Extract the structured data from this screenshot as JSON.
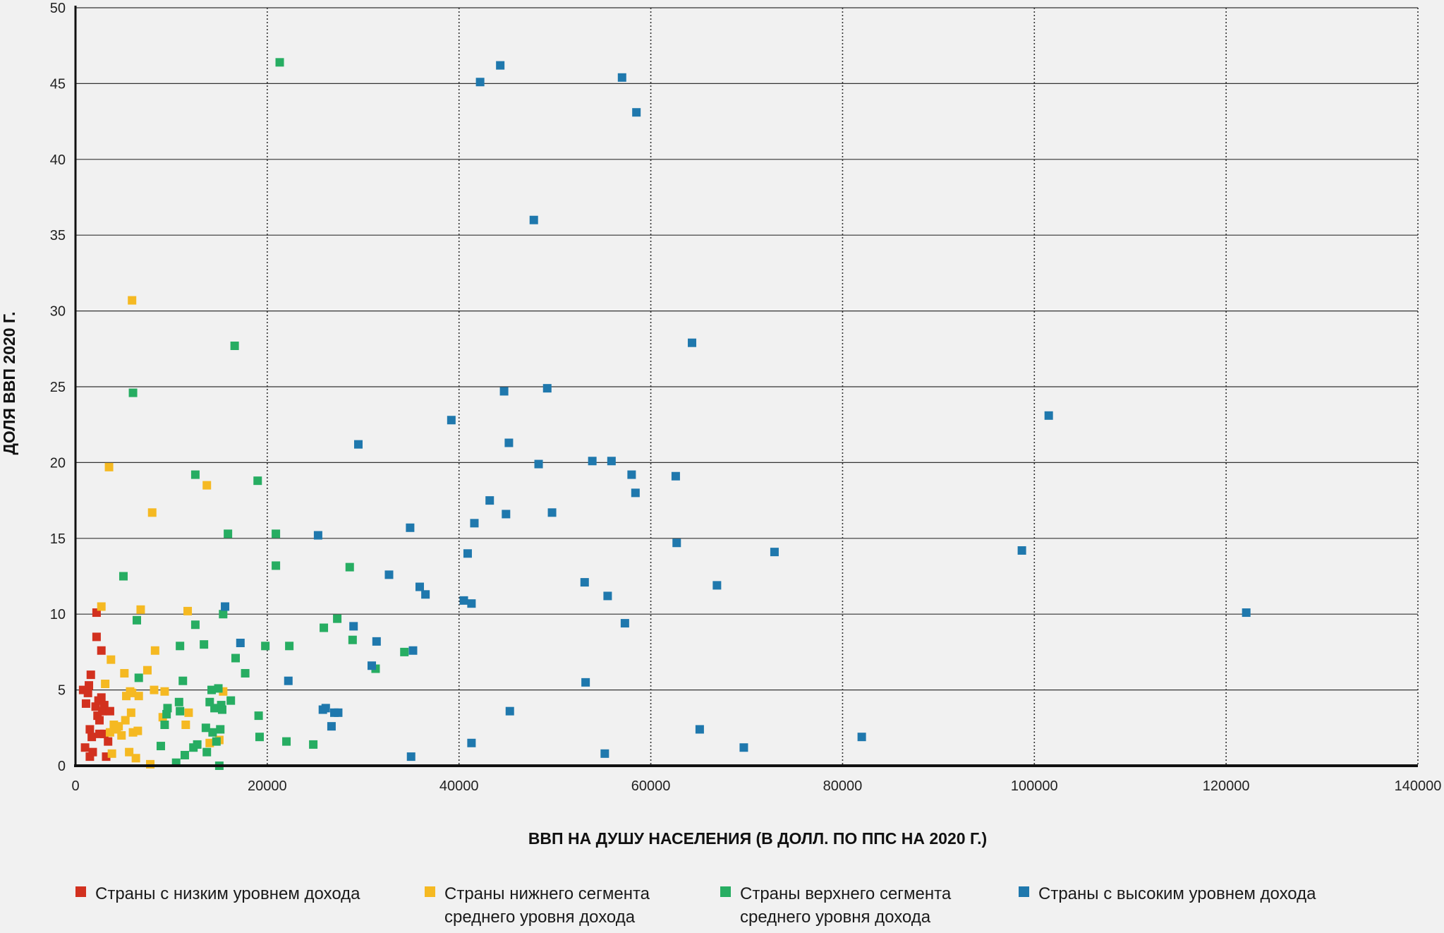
{
  "chart_data": {
    "type": "scatter",
    "title": "",
    "xlabel": "ВВП НА ДУШУ НАСЕЛЕНИЯ (В ДОЛЛ. ПО ППС НА 2020 Г.)",
    "ylabel": "ДОЛЯ ВВП 2020 Г.",
    "xlim": [
      0,
      140000
    ],
    "ylim": [
      0,
      50
    ],
    "x_ticks": [
      "0",
      "20000",
      "40000",
      "60000",
      "80000",
      "100000",
      "120000",
      "140000"
    ],
    "y_ticks": [
      "0",
      "5",
      "10",
      "15",
      "20",
      "25",
      "30",
      "35",
      "40",
      "45",
      "50"
    ],
    "grid": {
      "x": "dotted vertical",
      "y": "solid horizontal"
    },
    "legend_position": "bottom",
    "series": [
      {
        "name": "Страны с низким уровнем дохода",
        "color": "#d2311f",
        "points": [
          [
            800,
            5.0
          ],
          [
            1000,
            1.2
          ],
          [
            1100,
            4.1
          ],
          [
            1300,
            4.8
          ],
          [
            1400,
            5.3
          ],
          [
            1500,
            0.6
          ],
          [
            1500,
            2.4
          ],
          [
            1600,
            6.0
          ],
          [
            1700,
            1.9
          ],
          [
            1800,
            0.9
          ],
          [
            2100,
            3.9
          ],
          [
            2200,
            10.1
          ],
          [
            2200,
            8.5
          ],
          [
            2300,
            3.3
          ],
          [
            2400,
            4.3
          ],
          [
            2500,
            3.0
          ],
          [
            2500,
            2.1
          ],
          [
            2700,
            4.5
          ],
          [
            2700,
            7.6
          ],
          [
            2800,
            3.6
          ],
          [
            3000,
            4.0
          ],
          [
            3000,
            2.1
          ],
          [
            3200,
            0.6
          ],
          [
            3400,
            1.6
          ],
          [
            3600,
            3.6
          ]
        ]
      },
      {
        "name": "Страны нижнего сегмента\nсреднего уровня дохода",
        "color": "#f5b922",
        "points": [
          [
            2700,
            10.5
          ],
          [
            3100,
            5.4
          ],
          [
            3500,
            19.7
          ],
          [
            3600,
            2.2
          ],
          [
            3700,
            7.0
          ],
          [
            3800,
            0.8
          ],
          [
            4000,
            2.7
          ],
          [
            4300,
            2.4
          ],
          [
            4500,
            2.6
          ],
          [
            4800,
            2.0
          ],
          [
            5100,
            6.1
          ],
          [
            5200,
            3.0
          ],
          [
            5300,
            4.6
          ],
          [
            5600,
            0.9
          ],
          [
            5700,
            4.9
          ],
          [
            5800,
            3.5
          ],
          [
            5900,
            4.8
          ],
          [
            5900,
            30.7
          ],
          [
            6000,
            2.2
          ],
          [
            6300,
            0.5
          ],
          [
            6500,
            2.3
          ],
          [
            6600,
            4.6
          ],
          [
            6800,
            10.3
          ],
          [
            7500,
            6.3
          ],
          [
            7800,
            0.1
          ],
          [
            8000,
            16.7
          ],
          [
            8200,
            5.0
          ],
          [
            8300,
            7.6
          ],
          [
            9100,
            3.2
          ],
          [
            9300,
            4.9
          ],
          [
            11500,
            2.7
          ],
          [
            11700,
            10.2
          ],
          [
            11800,
            3.5
          ],
          [
            13700,
            18.5
          ],
          [
            14000,
            1.5
          ],
          [
            15000,
            1.7
          ],
          [
            15400,
            4.9
          ]
        ]
      },
      {
        "name": "Страны верхнего сегмента\nсреднего уровня дохода",
        "color": "#27ad62",
        "points": [
          [
            5000,
            12.5
          ],
          [
            6000,
            24.6
          ],
          [
            6400,
            9.6
          ],
          [
            6600,
            5.8
          ],
          [
            8900,
            1.3
          ],
          [
            9300,
            2.7
          ],
          [
            9500,
            3.4
          ],
          [
            9600,
            3.8
          ],
          [
            10500,
            0.2
          ],
          [
            10800,
            4.2
          ],
          [
            10900,
            3.6
          ],
          [
            10900,
            7.9
          ],
          [
            11200,
            5.6
          ],
          [
            11400,
            0.7
          ],
          [
            12300,
            1.2
          ],
          [
            12500,
            19.2
          ],
          [
            12500,
            9.3
          ],
          [
            12700,
            1.4
          ],
          [
            13400,
            8.0
          ],
          [
            13600,
            2.5
          ],
          [
            13700,
            0.9
          ],
          [
            14000,
            4.2
          ],
          [
            14200,
            5.0
          ],
          [
            14300,
            2.2
          ],
          [
            14500,
            3.8
          ],
          [
            14700,
            1.6
          ],
          [
            14900,
            5.1
          ],
          [
            15000,
            0.0
          ],
          [
            15100,
            2.4
          ],
          [
            15200,
            4.0
          ],
          [
            15300,
            3.7
          ],
          [
            15400,
            10.0
          ],
          [
            15900,
            15.3
          ],
          [
            16200,
            4.3
          ],
          [
            16600,
            27.7
          ],
          [
            16700,
            7.1
          ],
          [
            17700,
            6.1
          ],
          [
            19000,
            18.8
          ],
          [
            19100,
            3.3
          ],
          [
            19200,
            1.9
          ],
          [
            19800,
            7.9
          ],
          [
            20900,
            15.3
          ],
          [
            20900,
            13.2
          ],
          [
            21300,
            46.4
          ],
          [
            22000,
            1.6
          ],
          [
            22300,
            7.9
          ],
          [
            24800,
            1.4
          ],
          [
            25900,
            9.1
          ],
          [
            27300,
            9.7
          ],
          [
            28600,
            13.1
          ],
          [
            28900,
            8.3
          ],
          [
            31300,
            6.4
          ],
          [
            34300,
            7.5
          ]
        ]
      },
      {
        "name": "Страны с высоким уровнем дохода",
        "color": "#1f78ad",
        "points": [
          [
            15600,
            10.5
          ],
          [
            17200,
            8.1
          ],
          [
            22200,
            5.6
          ],
          [
            25300,
            15.2
          ],
          [
            25800,
            3.7
          ],
          [
            26100,
            3.8
          ],
          [
            26700,
            2.6
          ],
          [
            27000,
            3.5
          ],
          [
            27400,
            3.5
          ],
          [
            29000,
            9.2
          ],
          [
            29500,
            21.2
          ],
          [
            30900,
            6.6
          ],
          [
            31400,
            8.2
          ],
          [
            32700,
            12.6
          ],
          [
            34900,
            15.7
          ],
          [
            35000,
            0.6
          ],
          [
            35200,
            7.6
          ],
          [
            35900,
            11.8
          ],
          [
            36500,
            11.3
          ],
          [
            39200,
            22.8
          ],
          [
            40500,
            10.9
          ],
          [
            40900,
            14.0
          ],
          [
            41300,
            1.5
          ],
          [
            41300,
            10.7
          ],
          [
            41600,
            16.0
          ],
          [
            42200,
            45.1
          ],
          [
            43200,
            17.5
          ],
          [
            44300,
            46.2
          ],
          [
            44700,
            24.7
          ],
          [
            44900,
            16.6
          ],
          [
            45200,
            21.3
          ],
          [
            45300,
            3.6
          ],
          [
            47800,
            36.0
          ],
          [
            48300,
            19.9
          ],
          [
            49200,
            24.9
          ],
          [
            49700,
            16.7
          ],
          [
            53100,
            12.1
          ],
          [
            53200,
            5.5
          ],
          [
            53900,
            20.1
          ],
          [
            55200,
            0.8
          ],
          [
            55500,
            11.2
          ],
          [
            55900,
            20.1
          ],
          [
            57000,
            45.4
          ],
          [
            57300,
            9.4
          ],
          [
            58000,
            19.2
          ],
          [
            58400,
            18.0
          ],
          [
            58500,
            43.1
          ],
          [
            62600,
            19.1
          ],
          [
            62700,
            14.7
          ],
          [
            64300,
            27.9
          ],
          [
            65100,
            2.4
          ],
          [
            66900,
            11.9
          ],
          [
            69700,
            1.2
          ],
          [
            72900,
            14.1
          ],
          [
            82000,
            1.9
          ],
          [
            98700,
            14.2
          ],
          [
            101500,
            23.1
          ],
          [
            122100,
            10.1
          ]
        ]
      }
    ]
  }
}
